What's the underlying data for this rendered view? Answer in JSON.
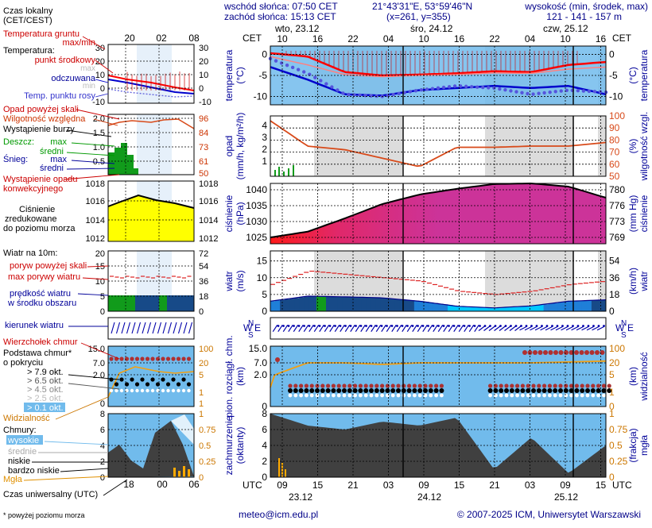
{
  "header": {
    "sunrise": "wschód słońca: 07:50 CET",
    "sunset": "zachód słońca: 15:13 CET",
    "coords": "21°43'31\"E, 53°59'46\"N",
    "grid": "(x=261, y=355)",
    "elev_title": "wysokość (min, środek, max)",
    "elev_values": "121 - 141 - 157 m"
  },
  "legend": {
    "local_time": "Czas lokalny",
    "local_time_zone": "(CET/CEST)",
    "ground_temp": "Temperatura gruntu",
    "ground_temp_sub": "max/min",
    "temperature": "Temperatura:",
    "mid_point": "punkt środkowy",
    "max": "max",
    "min": "min",
    "felt": "odczuwana",
    "dew": "Temp. punktu rosy",
    "precip_above": "Opad powyżej skali",
    "humidity": "Wilgotność względna",
    "storm": "Wystąpienie burzy",
    "rain": "Deszcz:",
    "rain_max": "max",
    "rain_mean": "średni",
    "snow": "Śnieg:",
    "snow_max": "max",
    "snow_mean": "średni",
    "conv1": "Wystąpienie opadu",
    "conv2": "konwekcyjnego",
    "press1": "Ciśnienie",
    "press2": "zredukowane",
    "press3": "do poziomu morza",
    "wind_at": "Wiatr na 10m:",
    "gust_over": "poryw powyżej skali",
    "gust_max": "max porywy wiatru",
    "wind_speed1": "prędkość wiatru",
    "wind_speed2": "w środku obszaru",
    "wind_dir": "kierunek wiatru",
    "cloud_top": "Wierzchołek chmur",
    "cloud_base1": "Podstawa chmur*",
    "cloud_base2": "o pokryciu",
    "cov1": "> 7.9 okt.",
    "cov2": "> 6.5 okt.",
    "cov3": "> 4.5 okt.",
    "cov4": "> 2.5 okt.",
    "cov5": "> 0.1 okt.",
    "visibility": "Widzialność",
    "clouds": "Chmury:",
    "cl_high": "wysokie",
    "cl_mid": "średnie",
    "cl_low": "niskie",
    "cl_vlow": "bardzo niskie",
    "fog": "Mgła",
    "utc": "Czas uniwersalny (UTC)",
    "footnote": "* powyżej poziomu morza"
  },
  "mini_axis": {
    "top_ticks": [
      "20",
      "02",
      "08"
    ],
    "bottom_ticks": [
      "18",
      "00",
      "06"
    ],
    "temp_ticks": [
      "30",
      "20",
      "10",
      "0",
      "-10"
    ],
    "precip_ticks": [
      "2.0",
      "1.5",
      "1.0",
      "0.5"
    ],
    "hum_ticks": [
      "96",
      "84",
      "73",
      "61",
      "50"
    ],
    "press_ticks": [
      "1018",
      "1016",
      "1014",
      "1012"
    ],
    "wind_ticks_ms": [
      "20",
      "15",
      "10",
      "5",
      "0"
    ],
    "wind_ticks_kmh": [
      "72",
      "54",
      "36",
      "18",
      "0"
    ],
    "cloud_km_ticks": [
      "15.0",
      "7.0",
      "2.0",
      "0"
    ],
    "vis_ticks": [
      "100",
      "20",
      "5",
      "1",
      "0"
    ],
    "vis_bottom": "8",
    "vis_bottom_r": "1",
    "oct_ticks": [
      "6",
      "4",
      "2",
      "0"
    ],
    "frac_ticks": [
      "0.75",
      "0.5",
      "0.25",
      "0"
    ]
  },
  "main_axis": {
    "cet": "CET",
    "utc": "UTC",
    "days_top": [
      "wto, 23.12",
      "śro, 24.12",
      "czw, 25.12"
    ],
    "hours_top": [
      "10",
      "16",
      "22",
      "04",
      "10",
      "16",
      "22",
      "04",
      "10",
      "16"
    ],
    "hours_bottom": [
      "09",
      "15",
      "21",
      "03",
      "09",
      "15",
      "21",
      "03",
      "09",
      "15"
    ],
    "days_bottom": [
      "23.12",
      "24.12",
      "25.12"
    ]
  },
  "panels": {
    "temp": {
      "label_l": "temperatura",
      "unit_l": "(°C)",
      "label_r": "temperatura",
      "unit_r": "(°C)",
      "ticks": [
        "0",
        "-5",
        "-10"
      ]
    },
    "precip": {
      "label_l": "opad",
      "unit_l": "(mm/h, kg/m²/h)",
      "label_r": "wilgotność wzgl.",
      "unit_r": "(%)",
      "ticks_l": [
        "4",
        "3",
        "2",
        "1"
      ],
      "ticks_r": [
        "100",
        "90",
        "80",
        "70",
        "60",
        "50"
      ]
    },
    "press": {
      "label_l": "ciśnienie",
      "unit_l": "(hPa)",
      "label_r": "ciśnienie",
      "unit_r": "(mm Hg)",
      "ticks_l": [
        "1040",
        "1035",
        "1030",
        "1025"
      ],
      "ticks_r": [
        "780",
        "776",
        "773",
        "769"
      ]
    },
    "wind": {
      "label_l": "wiatr",
      "unit_l": "(m/s)",
      "label_r": "wiatr",
      "unit_r": "(km/h)",
      "ticks_l": [
        "15",
        "10",
        "5",
        "0"
      ],
      "ticks_r": [
        "54",
        "36",
        "18",
        "0"
      ]
    },
    "dir": {
      "n": "N",
      "s": "S",
      "w": "W",
      "e": "E"
    },
    "cloudbase": {
      "label_l": "pion. rozciągł. chm.",
      "unit_l": "(km)",
      "label_r": "widzialność",
      "unit_r": "(km)",
      "ticks_l": [
        "15.0",
        "7.0",
        "2.0",
        "0"
      ],
      "ticks_r": [
        "100",
        "20",
        "5",
        "1",
        "0"
      ]
    },
    "cover": {
      "label_l": "zachmurzenie",
      "unit_l": "(oktanty)",
      "label_r": "mgła",
      "unit_r": "(frakcja)",
      "ticks_l": [
        "8",
        "6",
        "4",
        "2",
        "0"
      ],
      "ticks_r": [
        "1",
        "0.75",
        "0.5",
        "0.25",
        "0"
      ]
    }
  },
  "footer": {
    "email": "meteo@icm.edu.pl",
    "copyright": "© 2007-2025 ICM, Uniwersytet Warszawski"
  },
  "colors": {
    "sky": "#71bbec",
    "sky_light": "#a6d5f5",
    "band": "#dcdcdc",
    "temp_red": "#ff0000",
    "temp_blue": "#0000cc",
    "humidity": "#d84a1a",
    "pressure_fill": "#cc3399",
    "pressure_yellow": "#ffff00",
    "wind_dark": "#174a88",
    "wind_light": "#00c8ff",
    "wind_green": "#119b1b",
    "cloud_dark": "#404040",
    "visibility": "#f3a013",
    "fog": "#ffaa00"
  },
  "chart_data": [
    {
      "type": "line",
      "name": "temperature",
      "x": [
        "10",
        "16",
        "22",
        "04",
        "10",
        "16",
        "22",
        "04",
        "10",
        "16"
      ],
      "series": [
        {
          "name": "max",
          "values": [
            0.3,
            -0.5,
            -4.2,
            -5.0,
            -4.8,
            -4.5,
            -4.0,
            -4.2,
            -2.5,
            -1.8
          ]
        },
        {
          "name": "mid",
          "values": [
            -0.5,
            -2.5,
            -4.8,
            -5.3,
            -5.0,
            -4.8,
            -4.4,
            -4.5,
            -3.5,
            -3.0
          ]
        },
        {
          "name": "felt",
          "values": [
            -3.0,
            -6.0,
            -9.5,
            -9.8,
            -8.5,
            -8.0,
            -7.5,
            -8.0,
            -7.5,
            -9.5
          ]
        },
        {
          "name": "dew",
          "values": [
            -1.0,
            -4.5,
            -9.5,
            -10.0,
            -8.5,
            -7.5,
            -8.0,
            -9.5,
            -8.5,
            -9.0
          ]
        }
      ],
      "ylim": [
        -12,
        2
      ]
    },
    {
      "type": "line",
      "name": "precipitation-humidity",
      "x": [
        "10",
        "16",
        "22",
        "04",
        "10",
        "16",
        "22",
        "04",
        "10",
        "16"
      ],
      "precip_values": [
        0.4,
        0.2,
        0,
        0,
        0,
        0,
        0,
        0,
        0,
        0
      ],
      "humidity_values": [
        96,
        75,
        72,
        65,
        58,
        74,
        74,
        75,
        75,
        78
      ],
      "ylim_precip": [
        0,
        5
      ],
      "ylim_humidity": [
        50,
        100
      ]
    },
    {
      "type": "area",
      "name": "pressure",
      "x": [
        "10",
        "16",
        "22",
        "04",
        "10",
        "16",
        "22",
        "04",
        "10",
        "16"
      ],
      "values": [
        1025.0,
        1026.8,
        1031.0,
        1035.5,
        1038.5,
        1040.3,
        1041.8,
        1042.0,
        1041.0,
        1037.5
      ],
      "ylim": [
        1023,
        1042
      ]
    },
    {
      "type": "line",
      "name": "wind",
      "x": [
        "10",
        "16",
        "22",
        "04",
        "10",
        "16",
        "22",
        "04",
        "10",
        "16"
      ],
      "series": [
        {
          "name": "gusts",
          "values": [
            8,
            12,
            11,
            10,
            9,
            6,
            5,
            6,
            8,
            9
          ]
        },
        {
          "name": "speed",
          "values": [
            3.0,
            4.5,
            4.3,
            4.0,
            3.0,
            1.5,
            1.0,
            1.6,
            3.0,
            3.4
          ]
        }
      ],
      "ylim": [
        0,
        18
      ]
    },
    {
      "type": "scatter",
      "name": "cloud-base-visibility",
      "x": [
        "10",
        "16",
        "22",
        "04",
        "10",
        "16",
        "22",
        "04",
        "10",
        "16"
      ],
      "visibility_values": [
        3,
        20,
        20,
        18,
        20,
        20,
        20,
        20,
        25,
        30
      ],
      "cloud_top_values": [
        7,
        0,
        0,
        0,
        0,
        0,
        0,
        0,
        11,
        11
      ],
      "base_values": [
        1.0,
        1.1,
        1.0,
        1.0,
        1.0,
        0.9,
        0,
        0.9,
        1.0,
        1.0
      ]
    },
    {
      "type": "area",
      "name": "cloud-cover",
      "x": [
        "10",
        "16",
        "22",
        "04",
        "10",
        "16",
        "22",
        "04",
        "10",
        "16"
      ],
      "low_values": [
        8,
        6.5,
        6,
        7,
        6.5,
        7.5,
        1,
        5,
        0.5,
        4
      ],
      "fog_values": [
        0.5,
        0,
        0,
        0,
        0,
        0,
        0,
        0,
        0,
        0
      ],
      "ylim_octants": [
        0,
        8
      ],
      "ylim_fog": [
        0,
        1
      ]
    }
  ]
}
